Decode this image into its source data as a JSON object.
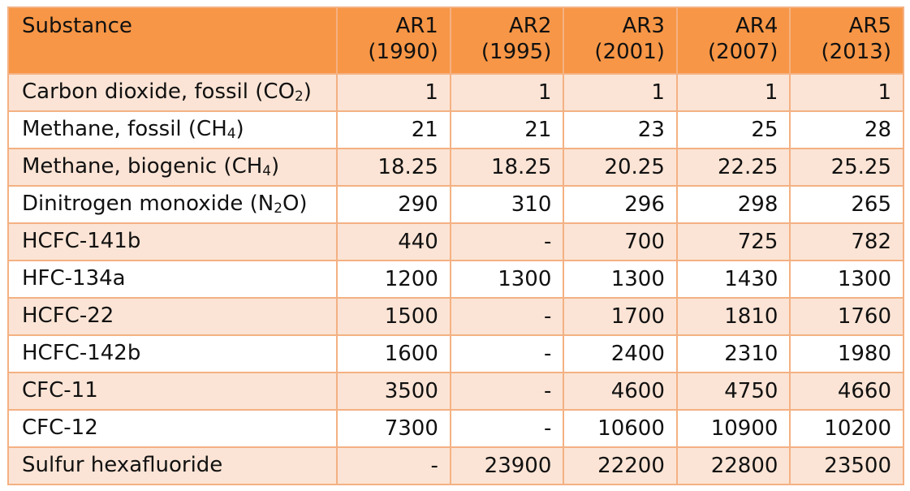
{
  "table": {
    "header": {
      "substance": "Substance",
      "columns": [
        {
          "label": "AR1",
          "year": "(1990)"
        },
        {
          "label": "AR2",
          "year": "(1995)"
        },
        {
          "label": "AR3",
          "year": "(2001)"
        },
        {
          "label": "AR4",
          "year": "(2007)"
        },
        {
          "label": "AR5",
          "year": "(2013)"
        }
      ]
    },
    "rows": [
      {
        "prefix": "Carbon dioxide, fossil (CO",
        "sub": "2",
        "suffix": ")",
        "values": [
          "1",
          "1",
          "1",
          "1",
          "1"
        ]
      },
      {
        "prefix": "Methane, fossil (CH",
        "sub": "4",
        "suffix": ")",
        "values": [
          "21",
          "21",
          "23",
          "25",
          "28"
        ]
      },
      {
        "prefix": "Methane, biogenic (CH",
        "sub": "4",
        "suffix": ")",
        "values": [
          "18.25",
          "18.25",
          "20.25",
          "22.25",
          "25.25"
        ]
      },
      {
        "prefix": "Dinitrogen monoxide (N",
        "sub": "2",
        "suffix": "O)",
        "values": [
          "290",
          "310",
          "296",
          "298",
          "265"
        ]
      },
      {
        "prefix": "HCFC-141b",
        "sub": "",
        "suffix": "",
        "values": [
          "440",
          "-",
          "700",
          "725",
          "782"
        ]
      },
      {
        "prefix": "HFC-134a",
        "sub": "",
        "suffix": "",
        "values": [
          "1200",
          "1300",
          "1300",
          "1430",
          "1300"
        ]
      },
      {
        "prefix": "HCFC-22",
        "sub": "",
        "suffix": "",
        "values": [
          "1500",
          "-",
          "1700",
          "1810",
          "1760"
        ]
      },
      {
        "prefix": "HCFC-142b",
        "sub": "",
        "suffix": "",
        "values": [
          "1600",
          "-",
          "2400",
          "2310",
          "1980"
        ]
      },
      {
        "prefix": "CFC-11",
        "sub": "",
        "suffix": "",
        "values": [
          "3500",
          "-",
          "4600",
          "4750",
          "4660"
        ]
      },
      {
        "prefix": "CFC-12",
        "sub": "",
        "suffix": "",
        "values": [
          "7300",
          "-",
          "10600",
          "10900",
          "10200"
        ]
      },
      {
        "prefix": "Sulfur hexafluoride",
        "sub": "",
        "suffix": "",
        "values": [
          "-",
          "23900",
          "22200",
          "22800",
          "23500"
        ]
      }
    ]
  },
  "colors": {
    "header_bg": "#f79646",
    "band_bg": "#fbe4d5",
    "border": "#f4b183"
  }
}
